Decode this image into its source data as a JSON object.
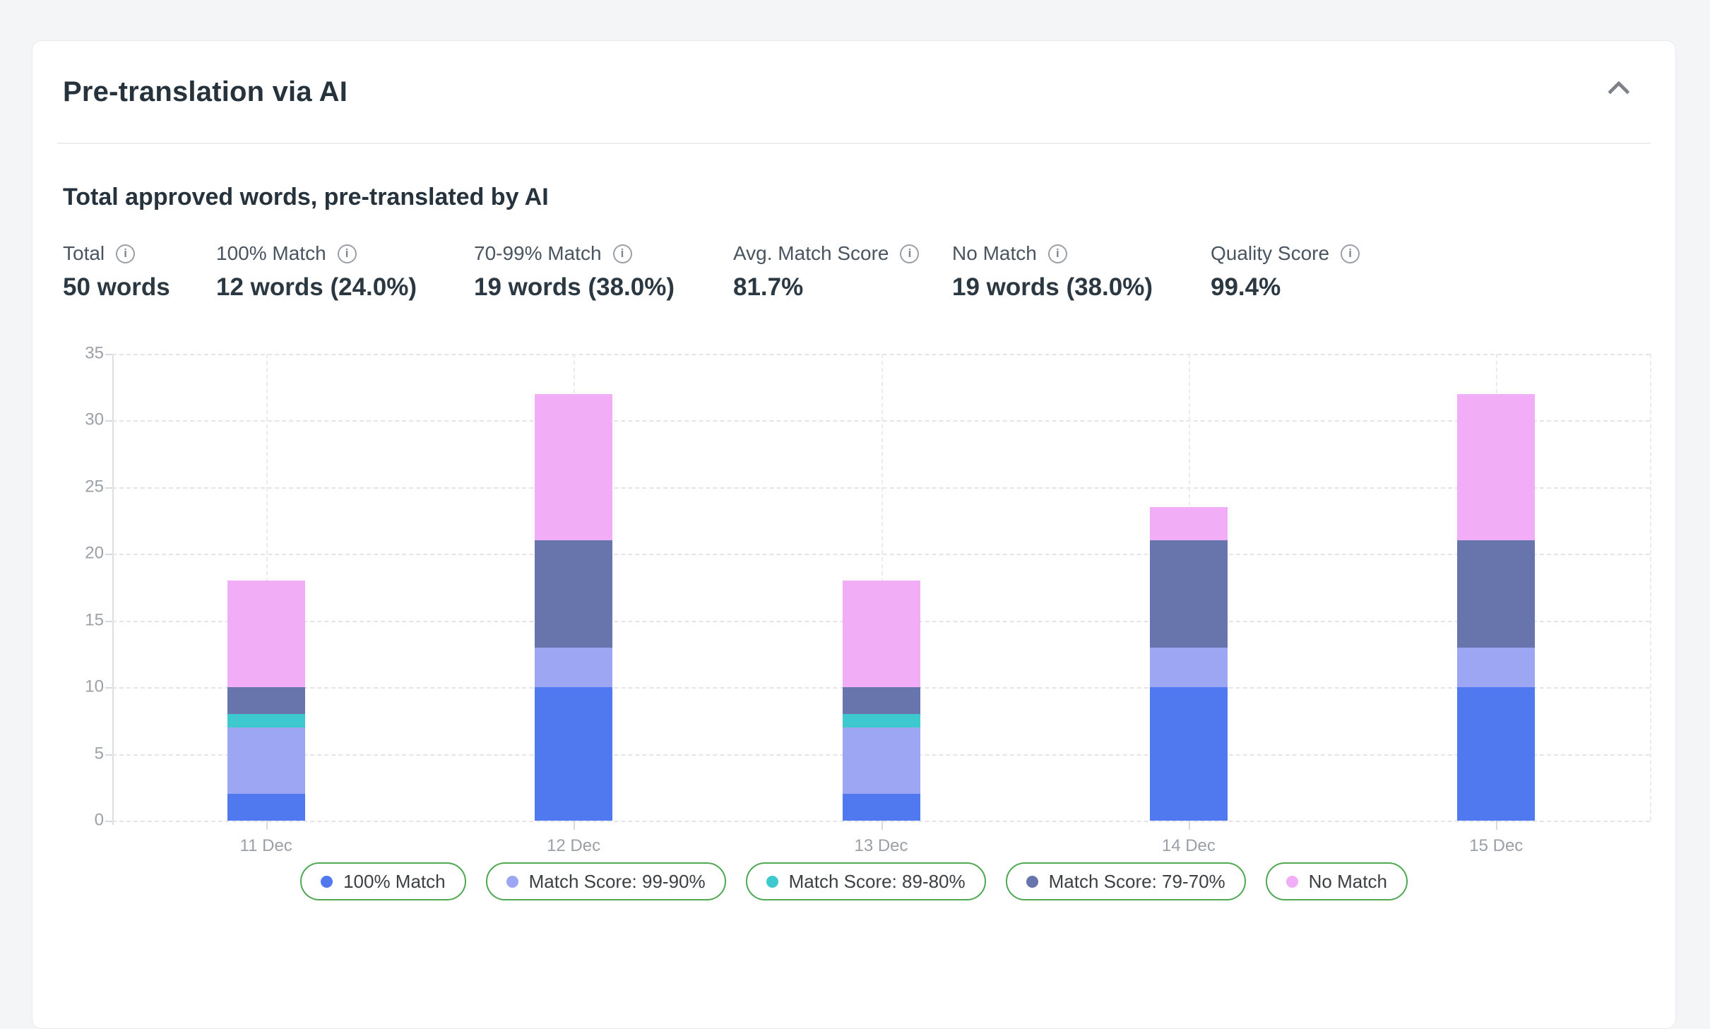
{
  "card": {
    "title": "Pre-translation via AI",
    "collapse_icon": "chevron-up",
    "section_heading": "Total approved words, pre-translated by AI",
    "stats": [
      {
        "label": "Total",
        "value": "50 words"
      },
      {
        "label": "100% Match",
        "value": "12 words (24.0%)"
      },
      {
        "label": "70-99% Match",
        "value": "19 words (38.0%)"
      },
      {
        "label": "Avg. Match Score",
        "value": "81.7%"
      },
      {
        "label": "No Match",
        "value": "19 words (38.0%)"
      },
      {
        "label": "Quality Score",
        "value": "99.4%"
      }
    ],
    "info_icon_glyph": "i"
  },
  "chart_data": {
    "type": "bar",
    "stacked": true,
    "title": "",
    "xlabel": "",
    "ylabel": "",
    "categories": [
      "11 Dec",
      "12 Dec",
      "13 Dec",
      "14 Dec",
      "15 Dec"
    ],
    "series": [
      {
        "name": "100% Match",
        "color": "#5179EF",
        "values": [
          2,
          10,
          2,
          10,
          10
        ]
      },
      {
        "name": "Match Score: 99-90%",
        "color": "#9DA6F3",
        "values": [
          5,
          3,
          5,
          3,
          3
        ]
      },
      {
        "name": "Match Score: 89-80%",
        "color": "#3DC9CE",
        "values": [
          1,
          0,
          1,
          0,
          0
        ]
      },
      {
        "name": "Match Score: 79-70%",
        "color": "#6874AC",
        "values": [
          2,
          8,
          2,
          8,
          8
        ]
      },
      {
        "name": "No Match",
        "color": "#F1ADF5",
        "values": [
          8,
          11,
          8,
          2.5,
          11
        ]
      }
    ],
    "bar_totals": [
      18,
      32,
      18,
      23.5,
      32
    ],
    "ylim": [
      0,
      35
    ],
    "ytick_step": 5,
    "yticks": [
      0,
      5,
      10,
      15,
      20,
      25,
      30,
      35
    ],
    "grid": "dashed horizontal lines at each ytick, dashed vertical lines at category centers and right edge",
    "legend_position": "bottom",
    "legend_border_color": "#50A854"
  }
}
